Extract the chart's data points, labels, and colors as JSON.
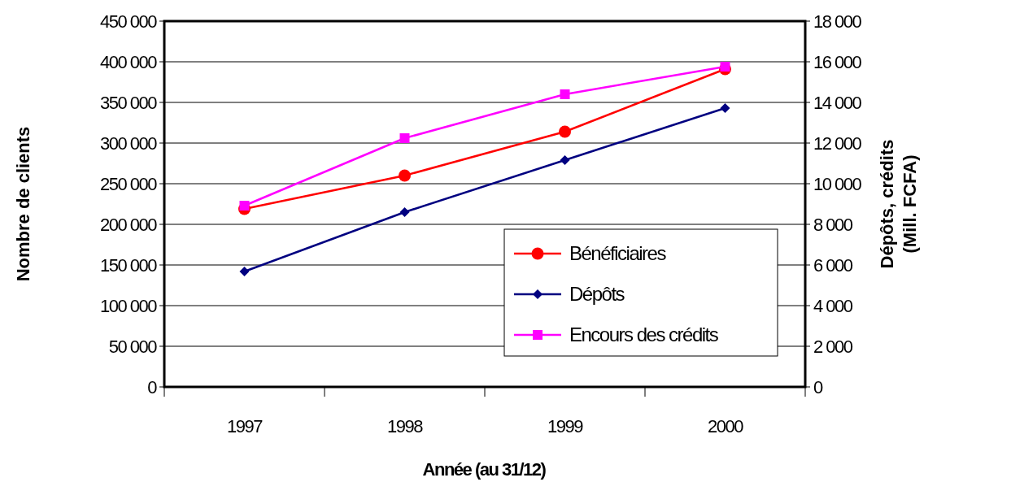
{
  "chart_data": {
    "type": "line",
    "xlabel": "Année (au 31/12)",
    "ylabel": "Nombre de clients",
    "y2label": "Dépôts, crédits (Mill. FCFA)",
    "categories": [
      "1997",
      "1998",
      "1999",
      "2000"
    ],
    "series": [
      {
        "name": "Bénéficiaires",
        "color": "#ff0000",
        "marker": "circle",
        "values": [
          219000,
          260000,
          314000,
          391000
        ]
      },
      {
        "name": "Dépôts",
        "color": "#000080",
        "marker": "diamond",
        "axis": "y2",
        "values": [
          5680,
          8600,
          11160,
          13720
        ]
      },
      {
        "name": "Encours des crédits",
        "color": "#ff00ff",
        "marker": "square",
        "axis": "y2",
        "values": [
          8920,
          12240,
          14400,
          15760
        ]
      }
    ],
    "ylim": [
      0,
      450000
    ],
    "yticks": [
      0,
      {
        "value": 50000,
        "label": "50 000"
      },
      {
        "value": 100000,
        "label": "100 000"
      },
      {
        "value": 150000,
        "label": "150 000"
      },
      {
        "value": 200000,
        "label": "200 000"
      },
      {
        "value": 250000,
        "label": "250 000"
      },
      {
        "value": 300000,
        "label": "300 000"
      },
      {
        "value": 350000,
        "label": "350 000"
      },
      {
        "value": 400000,
        "label": "400 000"
      },
      {
        "value": 450000,
        "label": "450 000"
      }
    ],
    "y2lim": [
      0,
      18000
    ],
    "y2ticks": [
      0,
      {
        "value": 2000,
        "label": "2 000"
      },
      {
        "value": 4000,
        "label": "4 000"
      },
      {
        "value": 6000,
        "label": "6 000"
      },
      {
        "value": 8000,
        "label": "8 000"
      },
      {
        "value": 10000,
        "label": "10 000"
      },
      {
        "value": 12000,
        "label": "12 000"
      },
      {
        "value": 14000,
        "label": "14 000"
      },
      {
        "value": 16000,
        "label": "16 000"
      },
      {
        "value": 18000,
        "label": "18 000"
      }
    ],
    "grid": "y",
    "legend": "bottom right"
  }
}
